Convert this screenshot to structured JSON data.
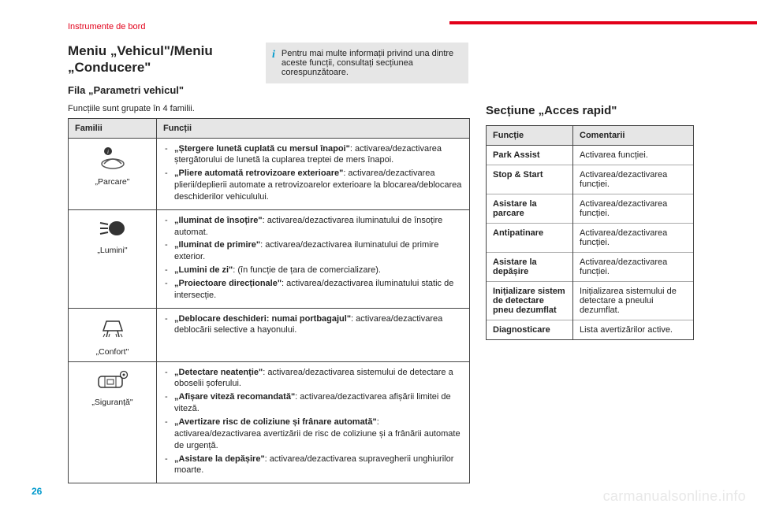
{
  "header": {
    "section": "Instrumente de bord",
    "red_bar_color": "#e2001a"
  },
  "left": {
    "title": "Meniu „Vehicul\"/Meniu „Conducere\"",
    "subtitle": "Fila „Parametri vehicul\"",
    "intro": "Funcțiile sunt grupate în 4 familii.",
    "table": {
      "head": {
        "col1": "Familii",
        "col2": "Funcții"
      },
      "rows": [
        {
          "family": "„Parcare\"",
          "items": [
            {
              "name": "„Ștergere lunetă cuplată cu mersul înapoi\"",
              "desc": ": activarea/dezactivarea ștergătorului de lunetă la cuplarea treptei de mers înapoi."
            },
            {
              "name": "„Pliere automată retrovizoare exterioare\"",
              "desc": ": activarea/dezactivarea plierii/deplierii automate a retrovizoarelor exterioare la blocarea/deblocarea deschiderilor vehiculului."
            }
          ]
        },
        {
          "family": "„Lumini\"",
          "items": [
            {
              "name": "„Iluminat de însoțire\"",
              "desc": ": activarea/dezactivarea iluminatului de însoțire automat."
            },
            {
              "name": "„Iluminat de primire\"",
              "desc": ": activarea/dezactivarea iluminatului de primire exterior."
            },
            {
              "name": "„Lumini de zi\"",
              "desc": ": (în funcție de țara de comercializare)."
            },
            {
              "name": "„Proiectoare direcționale\"",
              "desc": ": activarea/dezactivarea iluminatului static de intersecție."
            }
          ]
        },
        {
          "family": "„Confort\"",
          "items": [
            {
              "name": "„Deblocare deschideri: numai portbagajul\"",
              "desc": ": activarea/dezactivarea deblocării selective a hayonului."
            }
          ]
        },
        {
          "family": "„Siguranță\"",
          "items": [
            {
              "name": "„Detectare neatenție\"",
              "desc": ": activarea/dezactivarea sistemului de detectare a oboselii șoferului."
            },
            {
              "name": "„Afișare viteză recomandată\"",
              "desc": ": activarea/dezactivarea afișării limitei de viteză."
            },
            {
              "name": "„Avertizare risc de coliziune și frânare automată\"",
              "desc": ": activarea/dezactivarea avertizării de risc de coliziune și a frânării automate de urgență."
            },
            {
              "name": "„Asistare la depășire\"",
              "desc": ": activarea/dezactivarea supravegherii unghiurilor moarte."
            }
          ]
        }
      ]
    }
  },
  "infobox": "Pentru mai multe informații privind una dintre aceste funcții, consultați secțiunea corespunzătoare.",
  "right": {
    "title": "Secțiune „Acces rapid\"",
    "head": {
      "col1": "Funcție",
      "col2": "Comentarii"
    },
    "rows": [
      {
        "fn": "Park Assist",
        "cm": "Activarea funcției."
      },
      {
        "fn": "Stop & Start",
        "cm": "Activarea/dezactivarea funcției."
      },
      {
        "fn": "Asistare la parcare",
        "cm": "Activarea/dezactivarea funcției."
      },
      {
        "fn": "Antipatinare",
        "cm": "Activarea/dezactivarea funcției."
      },
      {
        "fn": "Asistare la depășire",
        "cm": "Activarea/dezactivarea funcției."
      },
      {
        "fn": "Inițializare sistem de detectare pneu dezumflat",
        "cm": "Inițializarea sistemului de detectare a pneului dezumflat."
      },
      {
        "fn": "Diagnosticare",
        "cm": "Lista avertizărilor active."
      }
    ]
  },
  "page_number": "26",
  "watermark": "carmanualsonline.info"
}
